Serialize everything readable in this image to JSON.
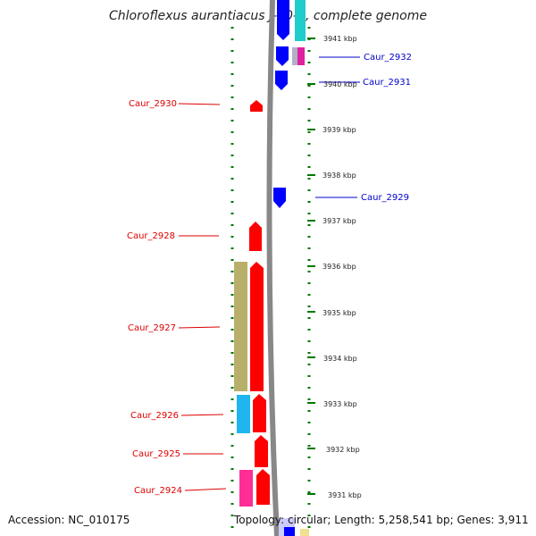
{
  "title": "Chloroflexus aurantiacus J-10-fl, complete genome",
  "footer": {
    "accession": "Accession: NC_010175",
    "summary": "Topology: circular; Length: 5,258,541 bp; Genes: 3,911"
  },
  "colors": {
    "forward": "#ff0000",
    "reverse": "#0000ff",
    "backbone": "#888888",
    "ticks": "#007700"
  },
  "kbp_labels": [
    "3941 kbp",
    "3940 kbp",
    "3939 kbp",
    "3938 kbp",
    "3937 kbp",
    "3936 kbp",
    "3935 kbp",
    "3934 kbp",
    "3933 kbp",
    "3932 kbp",
    "3931 kbp"
  ],
  "genes_left": [
    "Caur_2930",
    "Caur_2928",
    "Caur_2927",
    "Caur_2926",
    "Caur_2925",
    "Caur_2924"
  ],
  "genes_right": [
    "Caur_2932",
    "Caur_2931",
    "Caur_2929"
  ]
}
